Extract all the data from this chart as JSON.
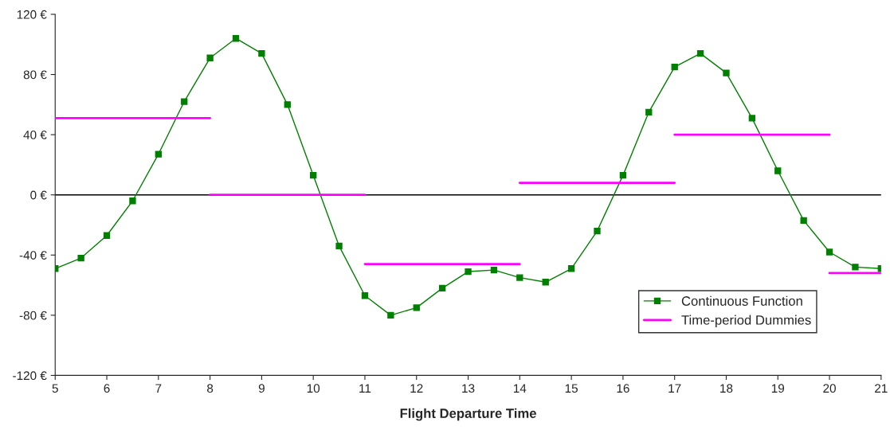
{
  "chart_data": {
    "type": "line",
    "xlabel": "Flight Departure Time",
    "xlim": [
      5,
      21
    ],
    "xticks": [
      5,
      6,
      7,
      8,
      9,
      10,
      11,
      12,
      13,
      14,
      15,
      16,
      17,
      18,
      19,
      20,
      21
    ],
    "ylim": [
      -120,
      120
    ],
    "yticks": [
      {
        "value": -120,
        "label": "-120 €"
      },
      {
        "value": -80,
        "label": "-80 €"
      },
      {
        "value": -40,
        "label": "-40 €"
      },
      {
        "value": 0,
        "label": "0 €"
      },
      {
        "value": 40,
        "label": "40 €"
      },
      {
        "value": 80,
        "label": "80 €"
      },
      {
        "value": 120,
        "label": "120 €"
      }
    ],
    "grid": false,
    "legend": "bottom right",
    "ref_lines": [
      {
        "axis": "y",
        "value": 0,
        "color": "#000000"
      }
    ],
    "series": [
      {
        "name": "Continuous Function",
        "color": "#008000",
        "marker": "square",
        "x": [
          5,
          5.5,
          6,
          6.5,
          7,
          7.5,
          8,
          8.5,
          9,
          9.5,
          10,
          10.5,
          11,
          11.5,
          12,
          12.5,
          13,
          13.5,
          14,
          14.5,
          15,
          15.5,
          16,
          16.5,
          17,
          17.5,
          18,
          18.5,
          19,
          19.5,
          20,
          20.5,
          21
        ],
        "values": [
          -49,
          -42,
          -27,
          -4,
          27,
          62,
          91,
          104,
          94,
          60,
          13,
          -34,
          -67,
          -80,
          -75,
          -62,
          -51,
          -50,
          -55,
          -58,
          -49,
          -24,
          13,
          55,
          85,
          94,
          81,
          51,
          16,
          -17,
          -38,
          -48,
          -49
        ]
      },
      {
        "name": "Time-period Dummies",
        "color": "#ff00ff",
        "marker": "none",
        "x": [
          5,
          8,
          null,
          8,
          11,
          null,
          11,
          14,
          null,
          14,
          17,
          null,
          17,
          20,
          null,
          20,
          21
        ],
        "values": [
          51,
          51,
          null,
          0,
          0,
          null,
          -46,
          -46,
          null,
          8,
          8,
          null,
          40,
          40,
          null,
          -52,
          -52
        ]
      }
    ]
  }
}
